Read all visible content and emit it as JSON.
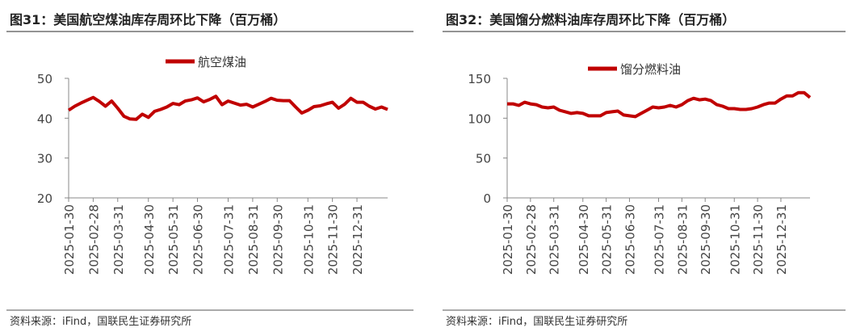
{
  "chart_data": [
    {
      "type": "line",
      "title": "图31：美国航空煤油库存周环比下降（百万桶）",
      "source": "资料来源：iFind，国联民生证券研究所",
      "categories": [
        "2025-01-30",
        null,
        null,
        null,
        "2025-02-28",
        null,
        null,
        null,
        "2025-03-31",
        null,
        null,
        null,
        null,
        "2025-04-30",
        null,
        null,
        null,
        "2025-05-31",
        null,
        null,
        null,
        "2025-06-30",
        null,
        null,
        null,
        null,
        "2025-07-31",
        null,
        null,
        null,
        "2025-08-31",
        null,
        null,
        null,
        "2025-09-30",
        null,
        null,
        null,
        null,
        "2025-10-31",
        null,
        null,
        null,
        "2025-11-30",
        null,
        null,
        null,
        "2025-12-31",
        null,
        null,
        null,
        null,
        null
      ],
      "series": [
        {
          "name": "航空煤油",
          "color": "#c00000",
          "values": [
            42,
            43,
            43.8,
            44.5,
            45.2,
            44.2,
            43,
            44.3,
            42.5,
            40.5,
            39.8,
            39.7,
            41,
            40.2,
            41.7,
            42.2,
            42.8,
            43.7,
            43.4,
            44.3,
            44.6,
            45.1,
            44.1,
            44.7,
            45.5,
            43.4,
            44.3,
            43.8,
            43.3,
            43.5,
            42.8,
            43.5,
            44.2,
            45,
            44.5,
            44.4,
            44.4,
            42.8,
            41.3,
            42,
            42.9,
            43.1,
            43.6,
            44,
            42.5,
            43.5,
            45,
            44,
            44,
            43,
            42.3,
            42.8,
            42.2
          ]
        }
      ],
      "ylim": [
        20,
        50
      ],
      "yticks": [
        20,
        30,
        40,
        50
      ]
    },
    {
      "type": "line",
      "title": "图32：美国馏分燃料油库存周环比下降（百万桶）",
      "source": "资料来源：iFind，国联民生证券研究所",
      "categories": [
        "2025-01-30",
        null,
        null,
        null,
        "2025-02-28",
        null,
        null,
        null,
        "2025-03-31",
        null,
        null,
        null,
        null,
        "2025-04-30",
        null,
        null,
        null,
        "2025-05-31",
        null,
        null,
        null,
        "2025-06-30",
        null,
        null,
        null,
        null,
        "2025-07-31",
        null,
        null,
        null,
        "2025-08-31",
        null,
        null,
        null,
        "2025-09-30",
        null,
        null,
        null,
        null,
        "2025-10-31",
        null,
        null,
        null,
        "2025-11-30",
        null,
        null,
        null,
        "2025-12-31",
        null,
        null,
        null,
        null,
        null
      ],
      "series": [
        {
          "name": "馏分燃料油",
          "color": "#c00000",
          "values": [
            118,
            118,
            116,
            120,
            118,
            117,
            114,
            113,
            114,
            110,
            108,
            106,
            107,
            106,
            103,
            103,
            103,
            107,
            108,
            109,
            104,
            103,
            102,
            106,
            110,
            114,
            113,
            114,
            116,
            114,
            117,
            122,
            125,
            123,
            124,
            122,
            117,
            115,
            112,
            112,
            111,
            111,
            112,
            114,
            117,
            119,
            119,
            124,
            128,
            128,
            132,
            132,
            126
          ]
        }
      ],
      "ylim": [
        0,
        150
      ],
      "yticks": [
        0,
        50,
        100,
        150
      ]
    }
  ]
}
